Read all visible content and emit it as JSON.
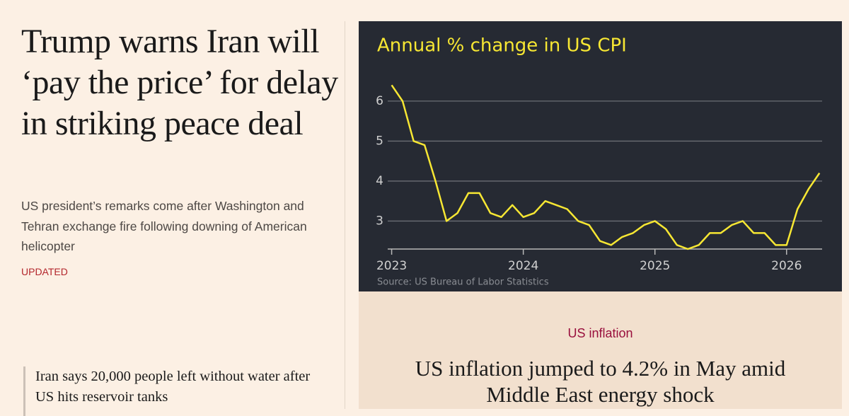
{
  "left_article": {
    "headline": "Trump warns Iran will ‘pay the price’ for delay in striking peace deal",
    "standfirst": "US president’s remarks come after Washington and Tehran exchange fire following downing of American helicopter",
    "status": "UPDATED"
  },
  "related_article": {
    "headline": "Iran says 20,000 people left without water after US hits reservoir tanks"
  },
  "card": {
    "tag": "US inflation",
    "headline": "US inflation jumped to 4.2% in May amid Middle East energy shock"
  },
  "chart_data": {
    "type": "line",
    "title": "Annual % change in US CPI",
    "source": "Source: US Bureau of Labor Statistics",
    "color": "#f7e733",
    "x": [
      2023,
      2023.083,
      2023.167,
      2023.25,
      2023.333,
      2023.417,
      2023.5,
      2023.583,
      2023.667,
      2023.75,
      2023.833,
      2023.917,
      2024,
      2024.083,
      2024.167,
      2024.25,
      2024.333,
      2024.417,
      2024.5,
      2024.583,
      2024.667,
      2024.75,
      2024.833,
      2024.917,
      2025,
      2025.083,
      2025.167,
      2025.25,
      2025.333,
      2025.417,
      2025.5,
      2025.583,
      2025.667,
      2025.75,
      2025.833,
      2025.917,
      2026,
      2026.083,
      2026.167,
      2026.25
    ],
    "values": [
      6.4,
      6.0,
      5.0,
      4.9,
      4.0,
      3.0,
      3.2,
      3.7,
      3.7,
      3.2,
      3.1,
      3.4,
      3.1,
      3.2,
      3.5,
      3.4,
      3.3,
      3.0,
      2.9,
      2.5,
      2.4,
      2.6,
      2.7,
      2.9,
      3.0,
      2.8,
      2.4,
      2.3,
      2.4,
      2.7,
      2.7,
      2.9,
      3.0,
      2.7,
      2.7,
      2.4,
      2.4,
      3.3,
      3.8,
      4.2
    ],
    "xlim": [
      2022.97,
      2026.27
    ],
    "xticks": [
      2023,
      2024,
      2025,
      2026
    ],
    "ylim": [
      2.3,
      6.6
    ],
    "yticks": [
      3,
      4,
      5,
      6
    ],
    "grid": true
  }
}
